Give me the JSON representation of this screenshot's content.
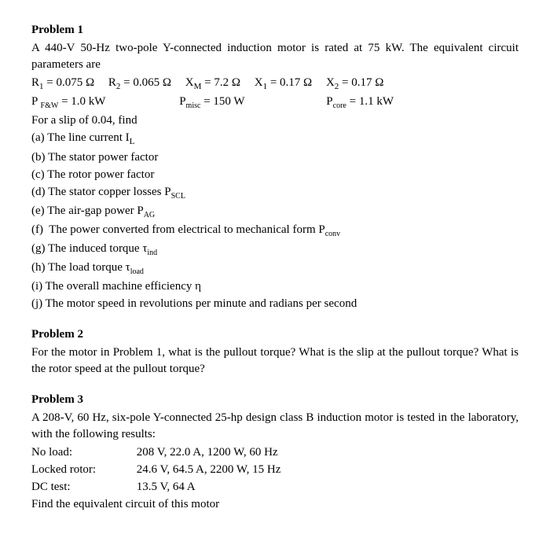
{
  "p1": {
    "title": "Problem 1",
    "intro": "A 440-V 50-Hz two-pole Y-connected induction motor is rated at 75 kW. The equivalent circuit parameters are",
    "row1": {
      "r1": "R₁ = 0.075 Ω",
      "r2": "R₂ = 0.065 Ω",
      "xm": "Xᴍ = 7.2 Ω",
      "x1": "X₁ = 0.17 Ω",
      "x2": "X₂ = 0.17 Ω"
    },
    "row2": {
      "pfw": "P ꜰ&ᴡ = 1.0 kW",
      "pmisc": "Pₘᵢₛc = 150 W",
      "pcore": "Pcₒᵣₑ = 1.1 kW"
    },
    "slip": "For a slip of 0.04, find",
    "qa": "(a) The line current Iʟ",
    "qb": "(b) The stator power factor",
    "qc": "(c) The rotor power factor",
    "qd": "(d) The stator copper losses Pꜱcʟ",
    "qe": "(e) The air-gap power Pᴀɢ",
    "qf": "(f)  The power converted from electrical to mechanical form Pcₒₙᵥ",
    "qg": "(g) The induced torque τᵢₙd",
    "qh": "(h) The load torque τₗₒₐd",
    "qi": "(i)  The overall machine efficiency η",
    "qj": "(j)  The motor speed in revolutions per minute and radians per second"
  },
  "p2": {
    "title": "Problem 2",
    "text": "For the motor in Problem 1, what is the pullout torque? What is the slip at the pullout torque? What is the rotor speed at the pullout torque?"
  },
  "p3": {
    "title": "Problem 3",
    "intro": "A 208-V, 60 Hz, six-pole Y-connected 25-hp design class B induction motor is tested in the laboratory, with the following results:",
    "noload_label": "No load:",
    "noload_val": "208 V, 22.0 A, 1200 W, 60 Hz",
    "locked_label": "Locked rotor:",
    "locked_val": "24.6 V, 64.5 A, 2200 W, 15 Hz",
    "dc_label": "DC test:",
    "dc_val": "13.5 V, 64 A",
    "find": "Find the equivalent circuit of this motor"
  },
  "style": {
    "font_family": "Times New Roman",
    "font_size_pt": 11,
    "text_color": "#000000",
    "background": "#ffffff"
  }
}
